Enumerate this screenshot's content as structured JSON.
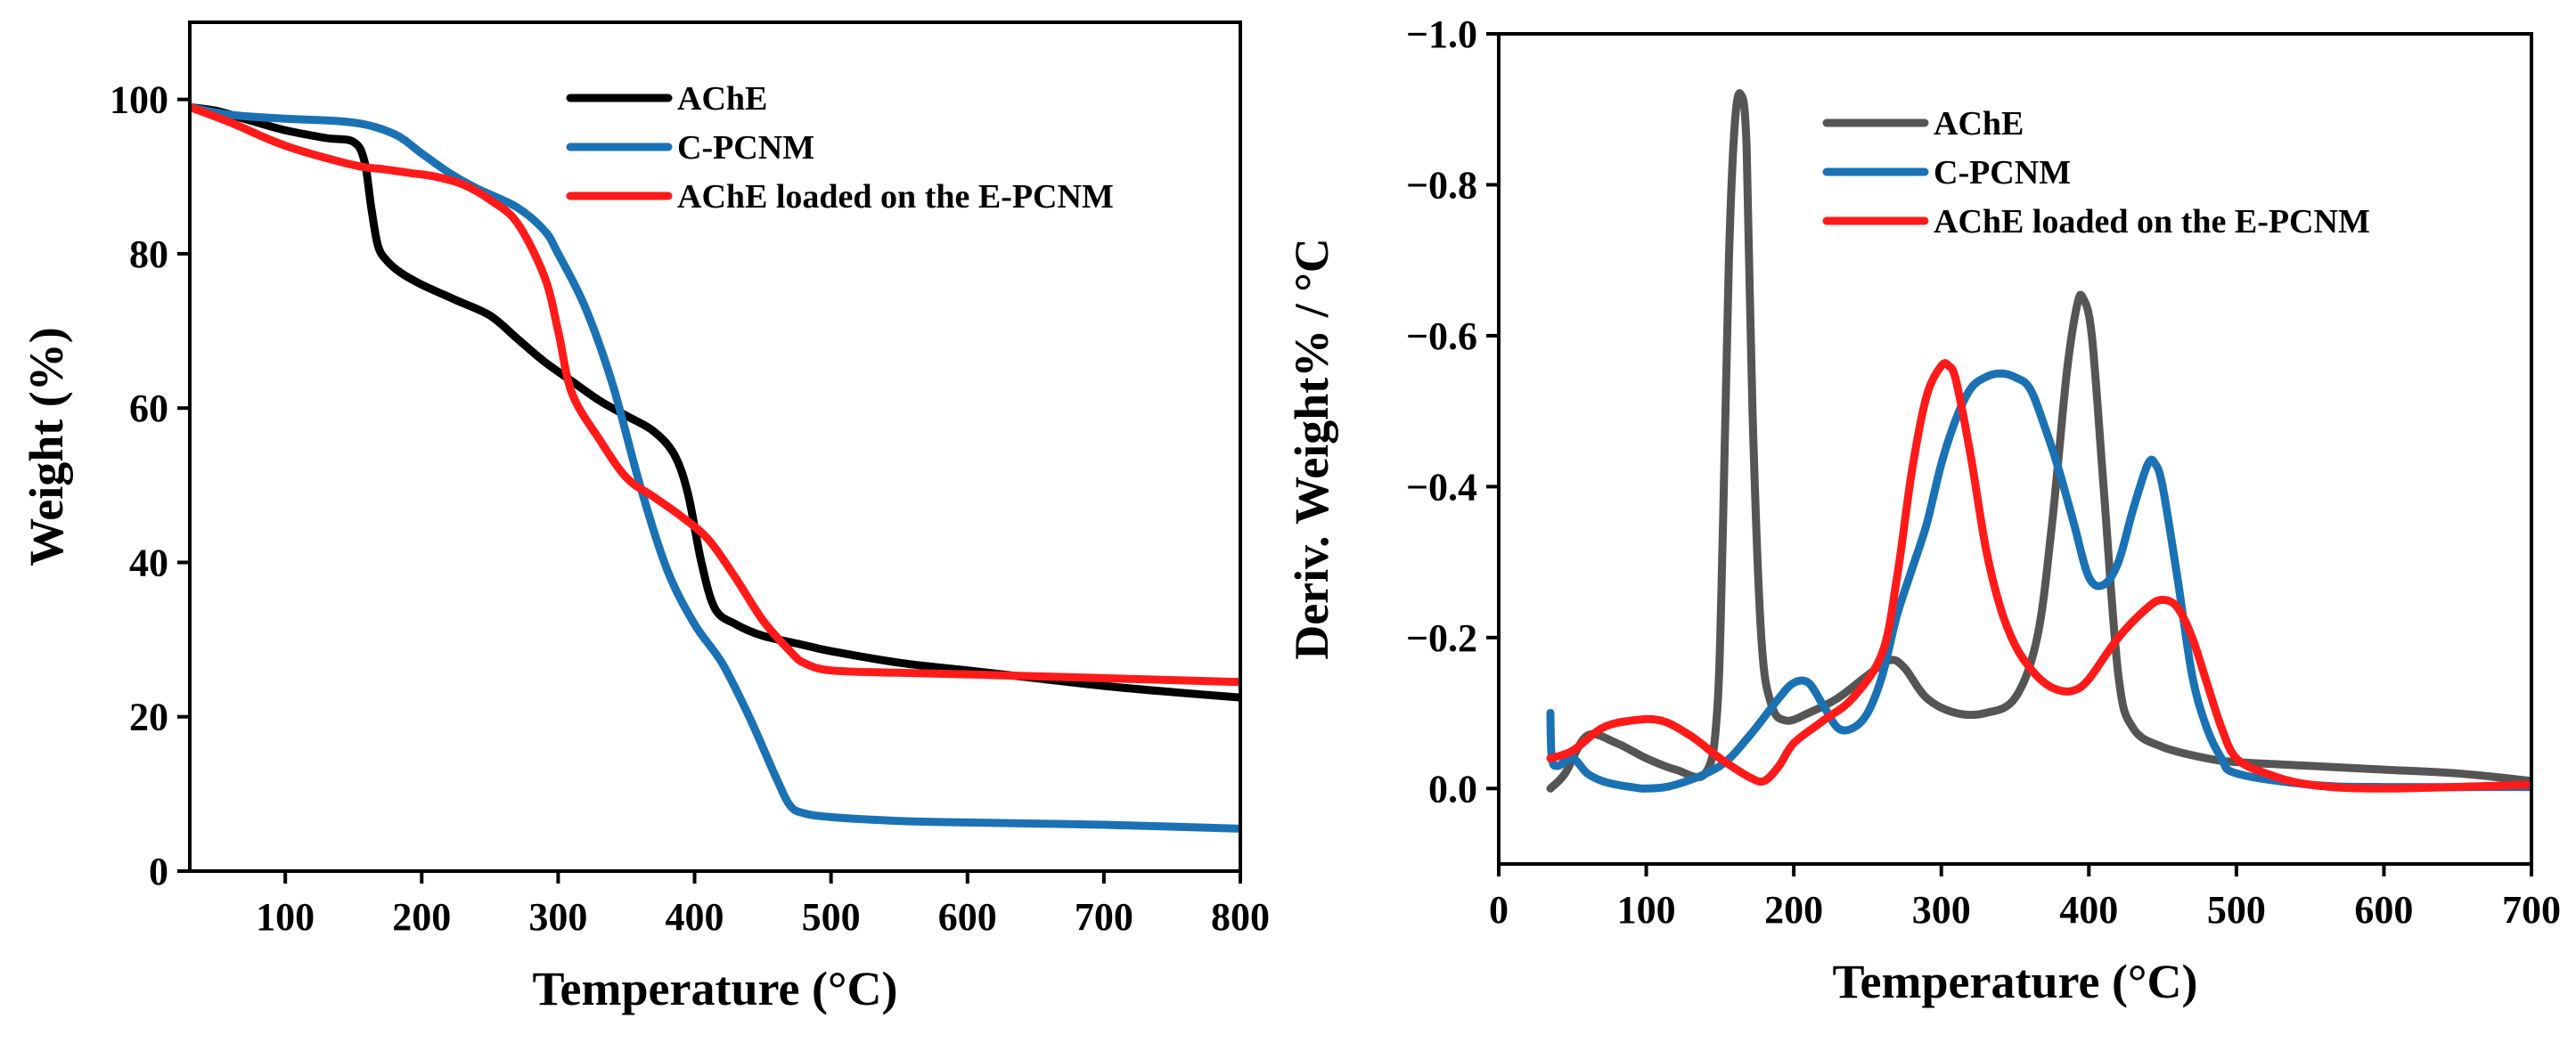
{
  "chart_data": [
    {
      "type": "line",
      "title": "",
      "xlabel": "Temperature (°C)",
      "ylabel": "Weight (%)",
      "xlim": [
        30,
        800
      ],
      "ylim": [
        0,
        110
      ],
      "x_ticks": [
        100,
        200,
        300,
        400,
        500,
        600,
        700,
        800
      ],
      "y_ticks": [
        0,
        20,
        40,
        60,
        80,
        100
      ],
      "x_tick_labels": [
        "100",
        "200",
        "300",
        "400",
        "500",
        "600",
        "700",
        "800"
      ],
      "y_tick_labels": [
        "0",
        "20",
        "40",
        "60",
        "80",
        "100"
      ],
      "grid": false,
      "legend_position": "top-right",
      "series": [
        {
          "name": "AChE",
          "color": "#000000",
          "x": [
            30,
            50,
            70,
            100,
            130,
            150,
            158,
            163,
            168,
            175,
            185,
            200,
            225,
            250,
            270,
            290,
            310,
            330,
            350,
            370,
            385,
            395,
            405,
            415,
            430,
            450,
            480,
            500,
            550,
            600,
            650,
            700,
            750,
            800
          ],
          "y": [
            99,
            98.5,
            97.5,
            96,
            95,
            94.5,
            92,
            86,
            81,
            79,
            77.5,
            76,
            74,
            72,
            69,
            66,
            63.5,
            61,
            59,
            57,
            54,
            49,
            40,
            34,
            32,
            30.5,
            29.3,
            28.5,
            27,
            26,
            25,
            24,
            23.2,
            22.5
          ]
        },
        {
          "name": "C-PCNM",
          "color": "#1a72b5",
          "x": [
            30,
            60,
            100,
            150,
            180,
            200,
            220,
            240,
            270,
            290,
            300,
            320,
            340,
            360,
            380,
            400,
            420,
            440,
            460,
            470,
            480,
            500,
            550,
            600,
            700,
            800
          ],
          "y": [
            99,
            98,
            97.5,
            97,
            95.5,
            93,
            90.5,
            88.5,
            86,
            83,
            80,
            73,
            63,
            50,
            39,
            32,
            27,
            20,
            12,
            8.5,
            7.5,
            7,
            6.5,
            6.3,
            6,
            5.5
          ]
        },
        {
          "name": "AChE loaded on the E-PCNM",
          "color": "#ff1a1a",
          "x": [
            30,
            60,
            100,
            150,
            170,
            190,
            210,
            230,
            250,
            270,
            290,
            300,
            310,
            330,
            350,
            370,
            390,
            410,
            430,
            450,
            470,
            480,
            500,
            550,
            600,
            700,
            800
          ],
          "y": [
            99,
            97,
            94,
            91.5,
            91,
            90.5,
            90,
            89,
            87,
            84,
            77,
            70,
            62,
            56,
            51,
            48.5,
            46,
            43,
            38,
            32.5,
            28.5,
            27,
            26,
            25.7,
            25.5,
            25,
            24.5
          ]
        }
      ]
    },
    {
      "type": "line",
      "title": "",
      "xlabel": "Temperature (°C)",
      "ylabel": "Deriv. Weight% / °C",
      "xlim": [
        0,
        700
      ],
      "ylim": [
        0.1,
        -1.0
      ],
      "y_axis_inverted": true,
      "x_ticks": [
        0,
        100,
        200,
        300,
        400,
        500,
        600,
        700
      ],
      "y_ticks": [
        0,
        -0.2,
        -0.4,
        -0.6,
        -0.8,
        -1.0
      ],
      "x_tick_labels": [
        "0",
        "100",
        "200",
        "300",
        "400",
        "500",
        "600",
        "700"
      ],
      "y_tick_labels": [
        "0.0",
        "−0.2",
        "−0.4",
        "−0.6",
        "−0.8",
        "−1.0"
      ],
      "grid": false,
      "legend_position": "top-right",
      "series": [
        {
          "name": "AChE",
          "color": "#555555",
          "x": [
            35,
            45,
            60,
            80,
            100,
            120,
            140,
            148,
            152,
            156,
            160,
            164,
            168,
            172,
            178,
            185,
            195,
            210,
            230,
            250,
            265,
            275,
            290,
            310,
            330,
            350,
            365,
            375,
            385,
            392,
            396,
            402,
            410,
            420,
            430,
            450,
            480,
            500,
            550,
            600,
            650,
            700
          ],
          "y": [
            0.0,
            -0.02,
            -0.07,
            -0.06,
            -0.04,
            -0.025,
            -0.02,
            -0.1,
            -0.35,
            -0.7,
            -0.88,
            -0.92,
            -0.85,
            -0.5,
            -0.2,
            -0.11,
            -0.09,
            -0.1,
            -0.12,
            -0.15,
            -0.17,
            -0.16,
            -0.12,
            -0.1,
            -0.1,
            -0.12,
            -0.2,
            -0.35,
            -0.55,
            -0.64,
            -0.65,
            -0.6,
            -0.4,
            -0.15,
            -0.08,
            -0.055,
            -0.04,
            -0.035,
            -0.03,
            -0.025,
            -0.02,
            -0.01
          ]
        },
        {
          "name": "C-PCNM",
          "color": "#1a72b5",
          "x": [
            35,
            36,
            40,
            50,
            60,
            70,
            80,
            90,
            100,
            120,
            150,
            170,
            190,
            200,
            210,
            220,
            230,
            240,
            250,
            260,
            270,
            280,
            290,
            300,
            310,
            320,
            330,
            340,
            350,
            360,
            370,
            380,
            390,
            400,
            410,
            420,
            430,
            440,
            445,
            450,
            460,
            470,
            480,
            490,
            500,
            550,
            600,
            700
          ],
          "y": [
            -0.1,
            -0.04,
            -0.03,
            -0.04,
            -0.02,
            -0.01,
            -0.005,
            -0.002,
            0.0,
            -0.005,
            -0.03,
            -0.07,
            -0.12,
            -0.14,
            -0.14,
            -0.11,
            -0.08,
            -0.08,
            -0.1,
            -0.15,
            -0.23,
            -0.29,
            -0.35,
            -0.43,
            -0.49,
            -0.53,
            -0.545,
            -0.55,
            -0.545,
            -0.53,
            -0.48,
            -0.42,
            -0.35,
            -0.28,
            -0.27,
            -0.3,
            -0.37,
            -0.43,
            -0.43,
            -0.4,
            -0.28,
            -0.15,
            -0.08,
            -0.04,
            -0.02,
            -0.005,
            -0.002,
            -0.002
          ]
        },
        {
          "name": "AChE loaded on the E-PCNM",
          "color": "#ff1a1a",
          "x": [
            35,
            50,
            70,
            90,
            110,
            130,
            150,
            170,
            180,
            190,
            200,
            220,
            240,
            260,
            270,
            280,
            290,
            300,
            305,
            310,
            320,
            330,
            340,
            350,
            360,
            370,
            380,
            390,
            400,
            420,
            440,
            450,
            460,
            470,
            480,
            490,
            500,
            520,
            550,
            600,
            700
          ],
          "y": [
            -0.04,
            -0.05,
            -0.08,
            -0.09,
            -0.09,
            -0.07,
            -0.04,
            -0.015,
            -0.01,
            -0.03,
            -0.06,
            -0.09,
            -0.12,
            -0.18,
            -0.28,
            -0.42,
            -0.52,
            -0.56,
            -0.56,
            -0.54,
            -0.44,
            -0.32,
            -0.24,
            -0.19,
            -0.16,
            -0.14,
            -0.13,
            -0.13,
            -0.145,
            -0.2,
            -0.24,
            -0.25,
            -0.24,
            -0.2,
            -0.14,
            -0.08,
            -0.04,
            -0.02,
            -0.005,
            0.0,
            -0.005
          ]
        }
      ]
    }
  ]
}
